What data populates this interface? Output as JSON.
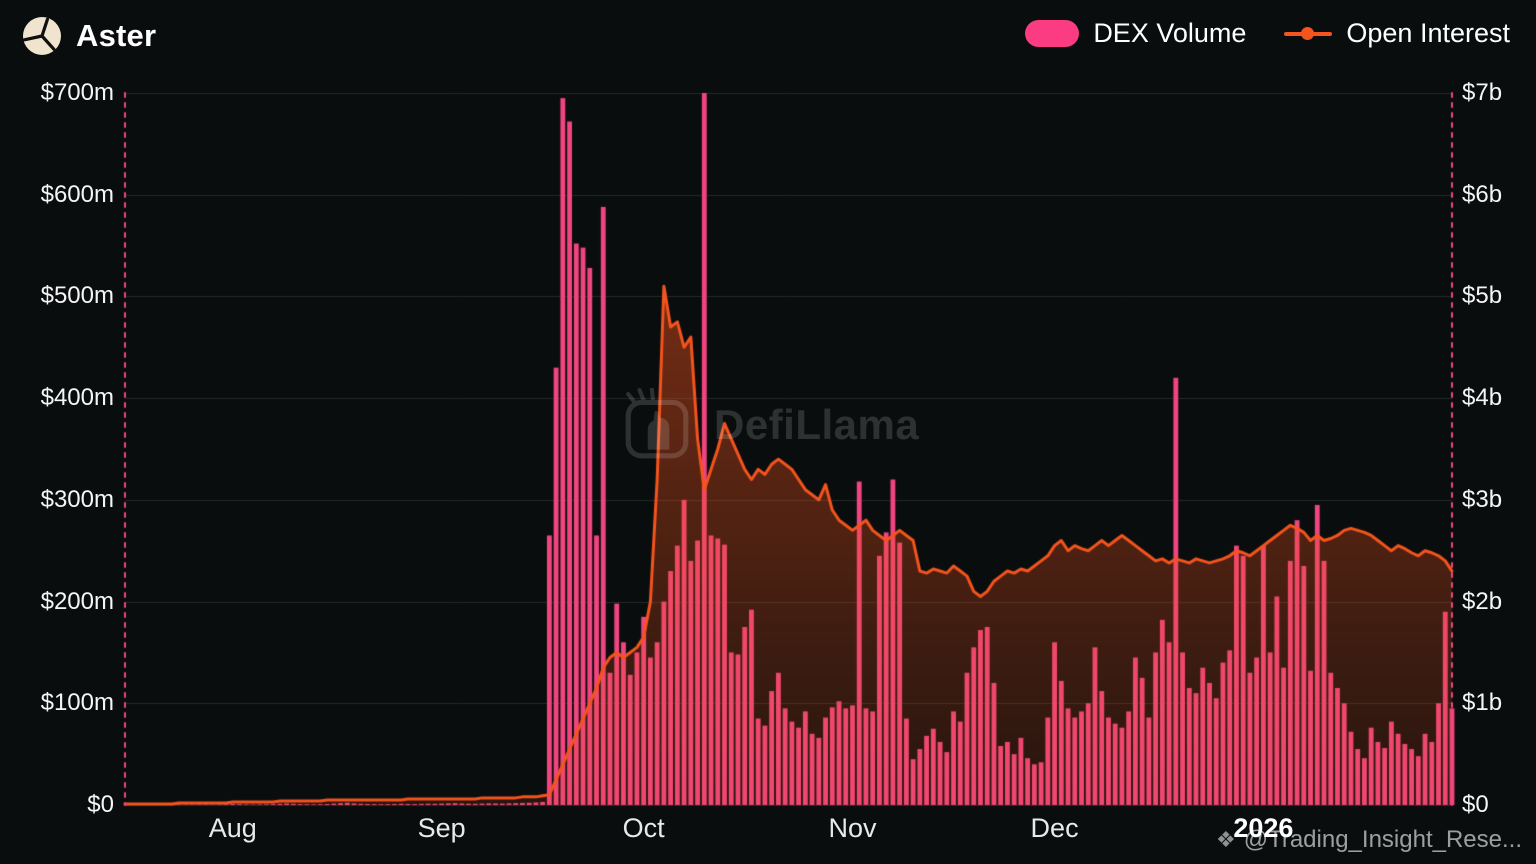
{
  "header": {
    "title": "Aster"
  },
  "legend": {
    "items": [
      {
        "label": "DEX Volume",
        "type": "bar",
        "color": "#fb3b82"
      },
      {
        "label": "Open Interest",
        "type": "line",
        "color": "#f4541d"
      }
    ]
  },
  "watermark": {
    "text": "DefiLlama"
  },
  "attribution": {
    "icon": "❖",
    "text": "@Trading_Insight_Rese..."
  },
  "colors": {
    "background": "#0a0d0e",
    "bar_pink": "#f0457f",
    "line_orange": "#f4541d",
    "grid": "#232829",
    "boundary_dash_pink": "#f0457f"
  },
  "chart_data": {
    "type": "combo-bar-line",
    "title": "Aster — DEX Volume and Open Interest",
    "frequency": "daily",
    "start_date": "2025-07-16",
    "end_date": "2026-01-29",
    "left_axis": {
      "series": "DEX Volume",
      "unit": "$m",
      "min": 0,
      "max": 700,
      "step": 100,
      "ticks": [
        "$0",
        "$100m",
        "$200m",
        "$300m",
        "$400m",
        "$500m",
        "$600m",
        "$700m"
      ]
    },
    "right_axis": {
      "series": "Open Interest",
      "unit": "$b",
      "min": 0,
      "max": 7,
      "step": 1,
      "ticks": [
        "$0",
        "$1b",
        "$2b",
        "$3b",
        "$4b",
        "$5b",
        "$6b",
        "$7b"
      ]
    },
    "x_ticks": [
      {
        "label": "Aug",
        "index": 16
      },
      {
        "label": "Sep",
        "index": 47
      },
      {
        "label": "Oct",
        "index": 77
      },
      {
        "label": "Nov",
        "index": 108
      },
      {
        "label": "Dec",
        "index": 138
      },
      {
        "label": "2026",
        "index": 169,
        "strong": true
      }
    ],
    "series": [
      {
        "name": "DEX Volume",
        "type": "bar",
        "axis": "left",
        "unit": "$m",
        "color": "#f0457f",
        "values": [
          0.3,
          0.4,
          0.3,
          0.5,
          0.4,
          0.3,
          0.4,
          0.5,
          0.6,
          0.4,
          0.5,
          0.6,
          0.5,
          0.4,
          0.6,
          0.8,
          1.0,
          0.8,
          0.6,
          0.5,
          0.6,
          0.7,
          0.9,
          1.2,
          1.5,
          1.2,
          0.9,
          0.8,
          0.7,
          0.8,
          1.0,
          1.4,
          1.8,
          2.2,
          1.6,
          1.2,
          1.0,
          0.9,
          0.8,
          0.9,
          1.0,
          1.2,
          1.0,
          0.9,
          1.1,
          1.3,
          1.2,
          1.4,
          1.6,
          1.8,
          1.5,
          1.3,
          1.2,
          1.4,
          1.6,
          1.5,
          1.4,
          1.6,
          1.8,
          2.0,
          2.2,
          2.5,
          3.0,
          265,
          430,
          695,
          672,
          552,
          548,
          528,
          265,
          588,
          130,
          198,
          160,
          128,
          150,
          185,
          145,
          160,
          200,
          230,
          255,
          300,
          240,
          260,
          700,
          265,
          262,
          256,
          150,
          148,
          175,
          192,
          85,
          78,
          112,
          130,
          95,
          82,
          76,
          92,
          70,
          66,
          86,
          96,
          102,
          95,
          98,
          318,
          95,
          92,
          245,
          268,
          320,
          258,
          85,
          45,
          55,
          68,
          75,
          62,
          52,
          92,
          82,
          130,
          155,
          172,
          175,
          120,
          58,
          62,
          50,
          66,
          46,
          40,
          42,
          86,
          160,
          122,
          95,
          86,
          92,
          100,
          155,
          112,
          86,
          80,
          76,
          92,
          145,
          125,
          86,
          150,
          182,
          160,
          420,
          150,
          115,
          110,
          135,
          120,
          105,
          140,
          152,
          255,
          245,
          130,
          145,
          255,
          150,
          205,
          135,
          240,
          280,
          235,
          132,
          295,
          240,
          130,
          115,
          100,
          72,
          55,
          46,
          76,
          62,
          56,
          82,
          70,
          60,
          55,
          48,
          70,
          62,
          100,
          190,
          95
        ]
      },
      {
        "name": "Open Interest",
        "type": "area-line",
        "axis": "right",
        "unit": "$b",
        "color": "#f4541d",
        "values": [
          0.01,
          0.01,
          0.01,
          0.01,
          0.01,
          0.01,
          0.01,
          0.01,
          0.02,
          0.02,
          0.02,
          0.02,
          0.02,
          0.02,
          0.02,
          0.02,
          0.03,
          0.03,
          0.03,
          0.03,
          0.03,
          0.03,
          0.03,
          0.04,
          0.04,
          0.04,
          0.04,
          0.04,
          0.04,
          0.04,
          0.05,
          0.05,
          0.05,
          0.05,
          0.05,
          0.05,
          0.05,
          0.05,
          0.05,
          0.05,
          0.05,
          0.05,
          0.06,
          0.06,
          0.06,
          0.06,
          0.06,
          0.06,
          0.06,
          0.06,
          0.06,
          0.06,
          0.06,
          0.07,
          0.07,
          0.07,
          0.07,
          0.07,
          0.07,
          0.08,
          0.08,
          0.08,
          0.09,
          0.1,
          0.25,
          0.4,
          0.55,
          0.7,
          0.85,
          1.0,
          1.15,
          1.35,
          1.45,
          1.5,
          1.45,
          1.5,
          1.55,
          1.65,
          2.0,
          3.2,
          5.1,
          4.7,
          4.75,
          4.5,
          4.6,
          3.6,
          3.1,
          3.3,
          3.5,
          3.75,
          3.6,
          3.45,
          3.3,
          3.2,
          3.3,
          3.25,
          3.35,
          3.4,
          3.35,
          3.3,
          3.2,
          3.1,
          3.05,
          3.0,
          3.15,
          2.9,
          2.8,
          2.75,
          2.7,
          2.75,
          2.8,
          2.7,
          2.65,
          2.6,
          2.65,
          2.7,
          2.65,
          2.6,
          2.3,
          2.28,
          2.32,
          2.3,
          2.28,
          2.35,
          2.3,
          2.25,
          2.1,
          2.05,
          2.1,
          2.2,
          2.25,
          2.3,
          2.28,
          2.32,
          2.3,
          2.35,
          2.4,
          2.45,
          2.55,
          2.6,
          2.5,
          2.55,
          2.52,
          2.5,
          2.55,
          2.6,
          2.55,
          2.6,
          2.65,
          2.6,
          2.55,
          2.5,
          2.45,
          2.4,
          2.42,
          2.38,
          2.42,
          2.4,
          2.38,
          2.42,
          2.4,
          2.38,
          2.4,
          2.42,
          2.45,
          2.5,
          2.48,
          2.45,
          2.5,
          2.55,
          2.6,
          2.65,
          2.7,
          2.75,
          2.72,
          2.68,
          2.6,
          2.65,
          2.6,
          2.62,
          2.65,
          2.7,
          2.72,
          2.7,
          2.68,
          2.65,
          2.6,
          2.55,
          2.5,
          2.55,
          2.52,
          2.48,
          2.45,
          2.5,
          2.48,
          2.45,
          2.4,
          2.3
        ]
      }
    ]
  }
}
